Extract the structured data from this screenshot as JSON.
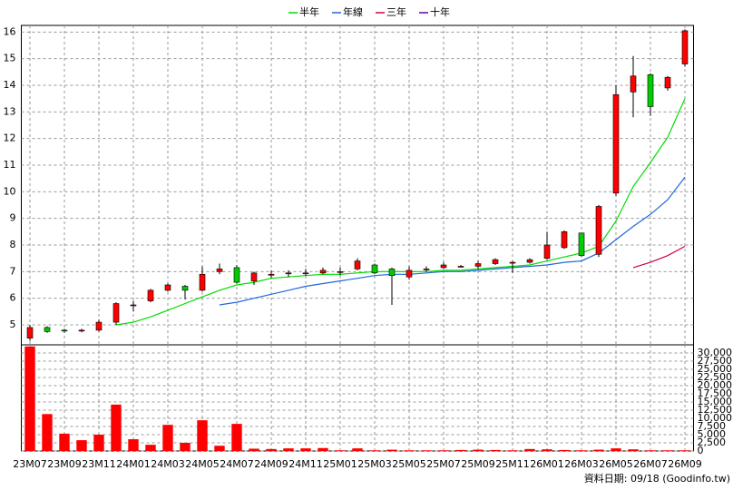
{
  "chart_data": {
    "type": "candlestick",
    "categories": [
      "23M07",
      null,
      "23M09",
      null,
      "23M11",
      null,
      "24M01",
      null,
      "24M03",
      null,
      "24M05",
      null,
      "24M07",
      null,
      "24M09",
      null,
      "24M11",
      null,
      "25M01",
      null,
      "25M03",
      null,
      "25M05",
      null,
      "25M07",
      null,
      "25M09",
      null,
      "25M11",
      null,
      "26M01",
      null,
      "26M03",
      null,
      "26M05",
      null,
      "26M07",
      null,
      "26M09"
    ],
    "open": [
      4.5,
      4.9,
      4.8,
      4.78,
      4.8,
      5.1,
      5.75,
      5.9,
      6.3,
      6.45,
      6.3,
      7.0,
      7.15,
      6.65,
      6.9,
      6.95,
      6.95,
      6.95,
      7.0,
      7.1,
      7.25,
      7.1,
      6.8,
      7.1,
      7.15,
      7.2,
      7.2,
      7.3,
      7.35,
      7.35,
      7.5,
      7.9,
      8.45,
      7.65,
      9.95,
      13.75,
      14.4,
      13.9,
      14.8
    ],
    "high": [
      5.0,
      4.95,
      4.85,
      4.85,
      5.2,
      5.85,
      5.9,
      6.35,
      6.55,
      6.5,
      7.2,
      7.3,
      7.25,
      7.0,
      7.05,
      7.05,
      7.1,
      7.15,
      7.15,
      7.5,
      7.3,
      7.15,
      7.2,
      7.2,
      7.35,
      7.25,
      7.4,
      7.5,
      7.4,
      7.5,
      8.5,
      8.55,
      8.45,
      9.5,
      14.0,
      15.1,
      14.45,
      14.35,
      16.1
    ],
    "low": [
      4.4,
      4.7,
      4.7,
      4.72,
      4.75,
      5.0,
      5.5,
      5.85,
      6.25,
      5.95,
      6.25,
      6.9,
      6.55,
      6.5,
      6.75,
      6.8,
      6.85,
      6.9,
      6.85,
      7.05,
      6.9,
      5.75,
      6.7,
      7.0,
      7.1,
      7.15,
      7.1,
      7.25,
      6.95,
      7.3,
      7.45,
      7.85,
      7.55,
      7.55,
      9.85,
      12.8,
      12.85,
      13.8,
      14.7
    ],
    "close": [
      4.9,
      4.75,
      4.78,
      4.8,
      5.1,
      5.8,
      5.75,
      6.3,
      6.5,
      6.3,
      6.9,
      7.1,
      6.6,
      6.95,
      6.9,
      6.95,
      6.95,
      7.05,
      7.0,
      7.4,
      6.95,
      6.85,
      7.05,
      7.1,
      7.25,
      7.2,
      7.3,
      7.45,
      7.35,
      7.45,
      8.0,
      8.5,
      7.6,
      9.45,
      13.65,
      14.35,
      13.2,
      14.3,
      16.05
    ],
    "up_color": "#ff0000",
    "down_color": "#00cc00",
    "series": [
      {
        "name": "半年",
        "color": "#00dd00",
        "values": [
          null,
          null,
          null,
          null,
          null,
          5.0,
          5.1,
          5.3,
          5.55,
          5.8,
          6.05,
          6.3,
          6.5,
          6.6,
          6.75,
          6.8,
          6.85,
          6.9,
          6.9,
          6.95,
          7.0,
          7.0,
          7.0,
          7.0,
          7.05,
          7.05,
          7.1,
          7.15,
          7.2,
          7.25,
          7.4,
          7.55,
          7.7,
          7.95,
          8.9,
          10.2,
          11.1,
          12.05,
          13.5
        ]
      },
      {
        "name": "年線",
        "color": "#2266dd",
        "values": [
          null,
          null,
          null,
          null,
          null,
          null,
          null,
          null,
          null,
          null,
          null,
          5.75,
          5.85,
          6.0,
          6.15,
          6.3,
          6.45,
          6.55,
          6.65,
          6.75,
          6.85,
          6.9,
          6.9,
          6.95,
          7.0,
          7.0,
          7.05,
          7.1,
          7.15,
          7.2,
          7.25,
          7.35,
          7.4,
          7.7,
          8.2,
          8.7,
          9.15,
          9.7,
          10.55
        ]
      },
      {
        "name": "三年",
        "color": "#cc0044",
        "values": [
          null,
          null,
          null,
          null,
          null,
          null,
          null,
          null,
          null,
          null,
          null,
          null,
          null,
          null,
          null,
          null,
          null,
          null,
          null,
          null,
          null,
          null,
          null,
          null,
          null,
          null,
          null,
          null,
          null,
          null,
          null,
          null,
          null,
          null,
          null,
          7.15,
          7.35,
          7.6,
          7.95
        ]
      },
      {
        "name": "十年",
        "color": "#660099",
        "values": [
          null,
          null,
          null,
          null,
          null,
          null,
          null,
          null,
          null,
          null,
          null,
          null,
          null,
          null,
          null,
          null,
          null,
          null,
          null,
          null,
          null,
          null,
          null,
          null,
          null,
          null,
          null,
          null,
          null,
          null,
          null,
          null,
          null,
          null,
          null,
          null,
          null,
          null,
          null
        ]
      }
    ],
    "ylim": [
      4.25,
      16.25
    ],
    "yticks": [
      5,
      6,
      7,
      8,
      9,
      10,
      11,
      12,
      13,
      14,
      15,
      16
    ],
    "grid": true,
    "volume": {
      "color": "#ff0000",
      "values": [
        32000,
        11300,
        5300,
        3300,
        5000,
        14200,
        3600,
        1900,
        8000,
        2500,
        9400,
        1600,
        8300,
        700,
        600,
        800,
        800,
        900,
        200,
        800,
        200,
        400,
        200,
        200,
        200,
        300,
        400,
        300,
        200,
        600,
        500,
        300,
        200,
        400,
        800,
        500,
        200,
        200,
        200
      ],
      "ylim": [
        0,
        32500
      ],
      "yticks": [
        0,
        {
          "value": 2500,
          "label": "2,500"
        },
        {
          "value": 5000,
          "label": "5,000"
        },
        {
          "value": 7500,
          "label": "7,500"
        },
        {
          "value": 10000,
          "label": "10,000"
        },
        {
          "value": 12500,
          "label": "12,500"
        },
        {
          "value": 15000,
          "label": "15,000"
        },
        {
          "value": 17500,
          "label": "17,500"
        },
        {
          "value": 20000,
          "label": "20,000"
        },
        {
          "value": 22500,
          "label": "22,500"
        },
        {
          "value": 25000,
          "label": "25,000"
        },
        {
          "value": 27500,
          "label": "27,500"
        },
        {
          "value": 30000,
          "label": "30,000"
        }
      ]
    },
    "footer": "資料日期: 09/18  (Goodinfo.tw)"
  }
}
